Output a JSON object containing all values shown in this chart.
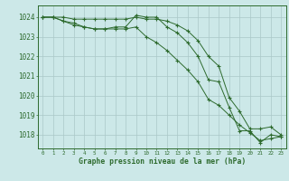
{
  "x": [
    0,
    1,
    2,
    3,
    4,
    5,
    6,
    7,
    8,
    9,
    10,
    11,
    12,
    13,
    14,
    15,
    16,
    17,
    18,
    19,
    20,
    21,
    22,
    23
  ],
  "line1": [
    1024.0,
    1024.0,
    1023.8,
    1023.7,
    1023.5,
    1023.4,
    1023.4,
    1023.5,
    1023.5,
    1024.1,
    1024.0,
    1024.0,
    1023.5,
    1023.2,
    1022.7,
    1022.0,
    1020.8,
    1020.7,
    1019.4,
    1018.2,
    1018.2,
    1017.6,
    1018.0,
    1017.9
  ],
  "line2": [
    1024.0,
    1024.0,
    1024.0,
    1023.9,
    1023.9,
    1023.9,
    1023.9,
    1023.9,
    1023.9,
    1024.0,
    1023.9,
    1023.9,
    1023.8,
    1023.6,
    1023.3,
    1022.8,
    1022.0,
    1021.5,
    1019.9,
    1019.2,
    1018.3,
    1018.3,
    1018.4,
    1018.0
  ],
  "line3": [
    1024.0,
    1024.0,
    1023.8,
    1023.6,
    1023.5,
    1023.4,
    1023.4,
    1023.4,
    1023.4,
    1023.5,
    1023.0,
    1022.7,
    1022.3,
    1021.8,
    1021.3,
    1020.7,
    1019.8,
    1019.5,
    1019.0,
    1018.5,
    1018.1,
    1017.7,
    1017.8,
    1017.9
  ],
  "color": "#2d6a2d",
  "bg_color": "#cce8e8",
  "grid_color": "#aac8c8",
  "ylabel_values": [
    1018,
    1019,
    1020,
    1021,
    1022,
    1023,
    1024
  ],
  "xlabel": "Graphe pression niveau de la mer (hPa)",
  "ylim": [
    1017.3,
    1024.6
  ],
  "xlim": [
    -0.5,
    23.5
  ]
}
